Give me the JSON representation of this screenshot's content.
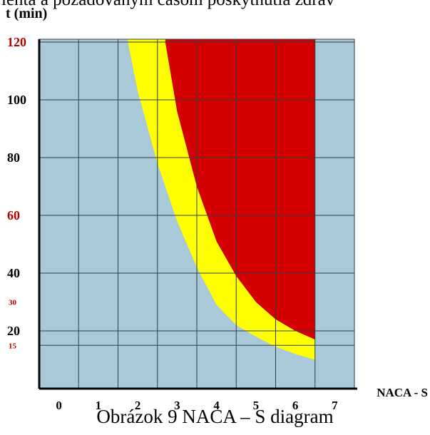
{
  "page": {
    "top_text": "ienta a požadovaným časom poskytnutia zdrav",
    "caption": "Obrázok 9 NACA – S diagram"
  },
  "colors": {
    "background": "#a9c9d9",
    "safe_zone": "#a9c9d9",
    "yellow_zone": "#ffff00",
    "red_zone": "#d40000",
    "grid": "#2f3f4a",
    "axis": "#000000",
    "tick_red": "#b30000",
    "tick_black": "#000000"
  },
  "chart_data": {
    "type": "area",
    "title": "",
    "xlabel": "NACA - S",
    "ylabel": "t (min)",
    "xlim": [
      -0.5,
      7.5
    ],
    "ylim": [
      0,
      121
    ],
    "x_ticks": [
      0,
      1,
      2,
      3,
      4,
      5,
      6,
      7
    ],
    "y_ticks": [
      {
        "value": 15,
        "label": "15",
        "color": "red",
        "size": "small"
      },
      {
        "value": 20,
        "label": "20",
        "color": "black",
        "size": "large"
      },
      {
        "value": 30,
        "label": "30",
        "color": "red",
        "size": "small"
      },
      {
        "value": 40,
        "label": "40",
        "color": "black",
        "size": "large"
      },
      {
        "value": 60,
        "label": "60",
        "color": "red",
        "size": "large"
      },
      {
        "value": 80,
        "label": "80",
        "color": "black",
        "size": "large"
      },
      {
        "value": 100,
        "label": "100",
        "color": "black",
        "size": "large"
      },
      {
        "value": 120,
        "label": "120",
        "color": "red",
        "size": "large"
      }
    ],
    "grid_y": [
      15,
      20,
      40,
      60,
      80,
      100,
      120
    ],
    "grid": true,
    "series": [
      {
        "color": "#ffff00",
        "boundary_x": [
          1.75,
          2.0,
          2.5,
          3.0,
          3.5,
          4.0,
          4.5,
          5.0,
          5.5,
          6.0,
          6.5
        ],
        "boundary_t": [
          120,
          103,
          78,
          58,
          42,
          29,
          22,
          18,
          14.5,
          12,
          10
        ]
      },
      {
        "color": "#d40000",
        "boundary_x": [
          2.7,
          3.0,
          3.5,
          4.0,
          4.5,
          5.0,
          5.5,
          6.0,
          6.5
        ],
        "boundary_t": [
          120,
          96,
          70,
          51,
          39,
          30,
          24,
          20,
          17
        ]
      }
    ],
    "colored_region_x_max": 6.5
  }
}
